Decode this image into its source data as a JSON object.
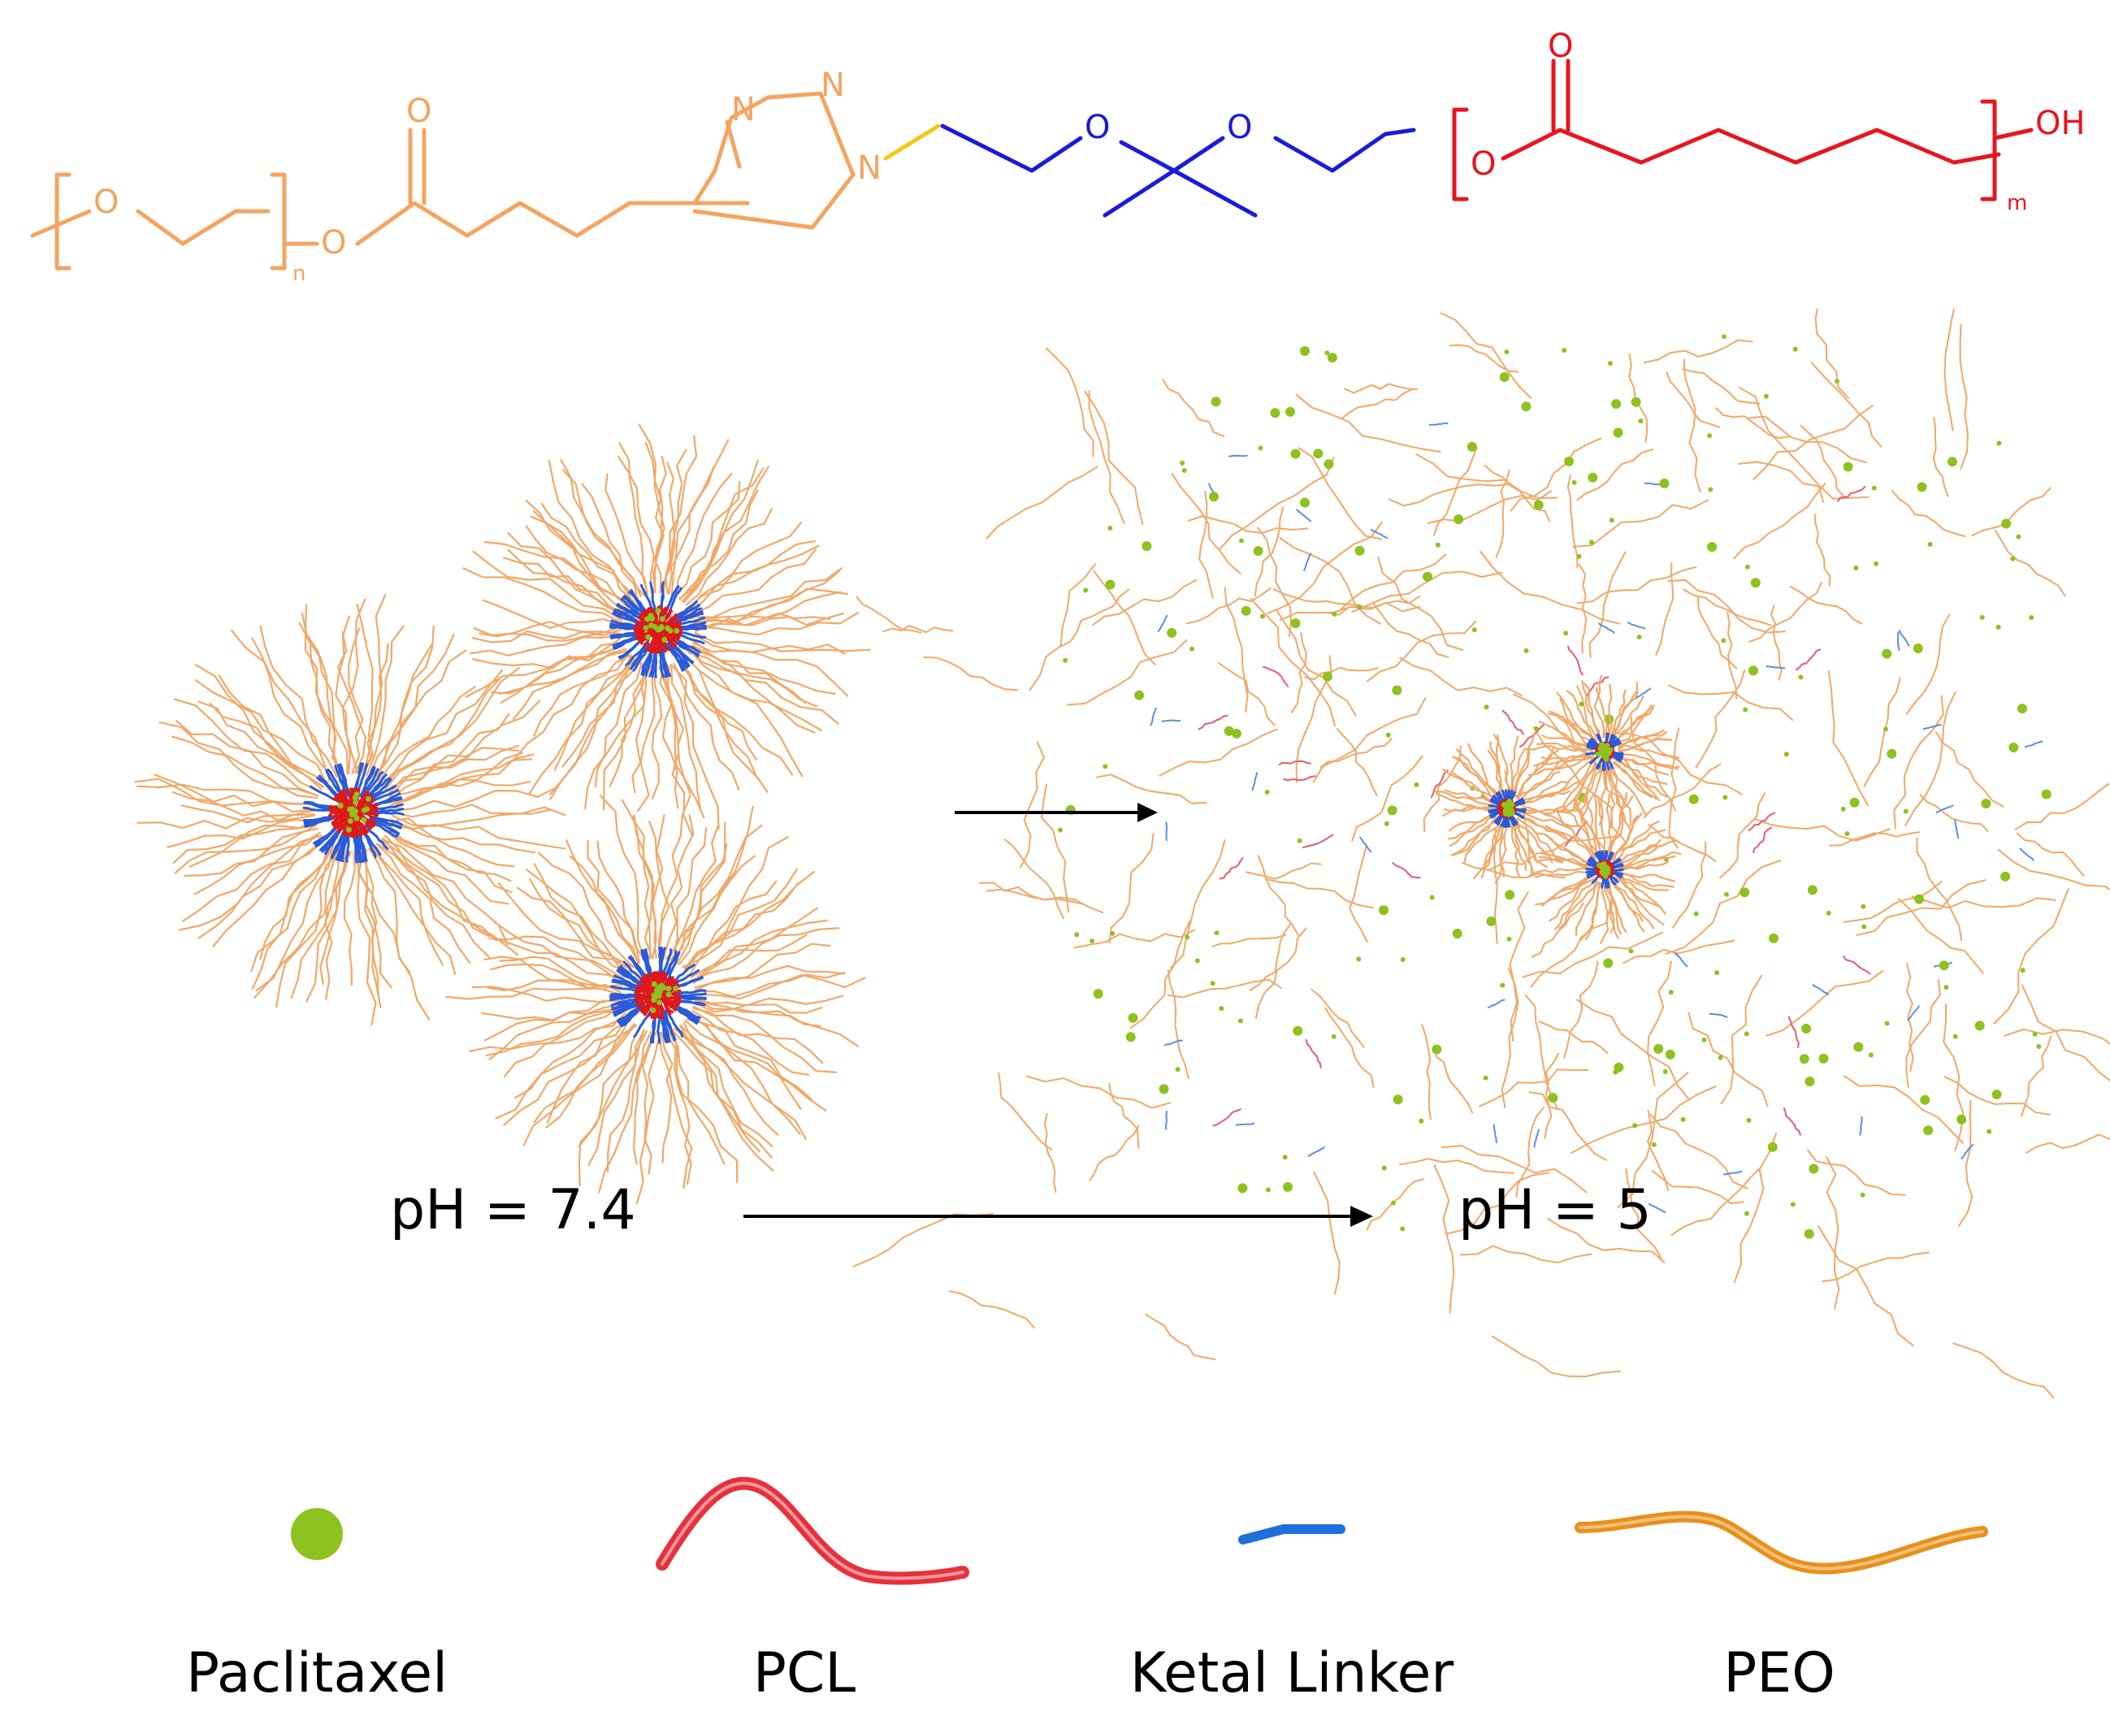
{
  "formula": {
    "atom_o": "O",
    "atom_n": "N",
    "subscript_n": "n",
    "subscript_m": "m",
    "end_group": "OH",
    "colors": {
      "peo": "#f4a460",
      "linker_bond": "#f5c518",
      "ketal": "#1a1adc",
      "pcl": "#e8141e"
    }
  },
  "conditions": {
    "before": "pH = 7.4",
    "after": "pH = 5"
  },
  "legend": [
    {
      "label": "Paclitaxel",
      "icon": "green-dot-icon",
      "color": "#8dc21f"
    },
    {
      "label": "PCL",
      "icon": "red-strand-icon",
      "color": "#e8303a"
    },
    {
      "label": "Ketal Linker",
      "icon": "blue-segment-icon",
      "color": "#1e6fd9"
    },
    {
      "label": "PEO",
      "icon": "orange-strand-icon",
      "color": "#e8901e"
    }
  ]
}
